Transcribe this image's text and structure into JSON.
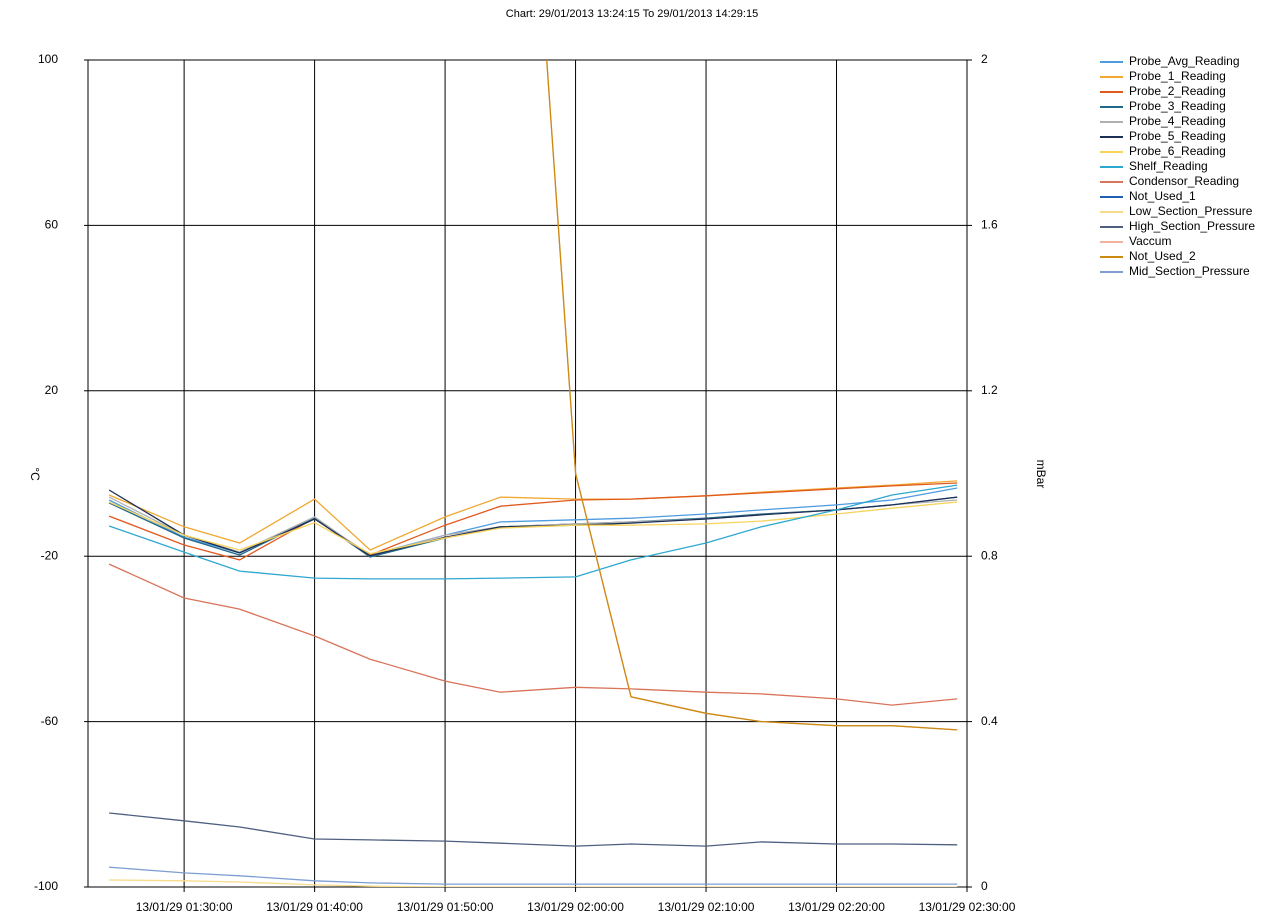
{
  "chart_data": {
    "type": "line",
    "title": "Chart: 29/01/2013 13:24:15 To 29/01/2013 14:29:15",
    "y_label": "°C",
    "y2_label": "mBar",
    "x": [
      "13/01/29 01:24:15",
      "13/01/29 01:30:00",
      "13/01/29 01:34:15",
      "13/01/29 01:40:00",
      "13/01/29 01:44:15",
      "13/01/29 01:50:00",
      "13/01/29 01:54:15",
      "13/01/29 02:00:00",
      "13/01/29 02:04:15",
      "13/01/29 02:10:00",
      "13/01/29 02:14:15",
      "13/01/29 02:20:00",
      "13/01/29 02:24:15",
      "13/01/29 02:29:15"
    ],
    "xlim": [
      "13/01/29 01:22:38",
      "13/01/29 02:30:00"
    ],
    "xticks": [
      "13/01/29 01:30:00",
      "13/01/29 01:40:00",
      "13/01/29 01:50:00",
      "13/01/29 02:00:00",
      "13/01/29 02:10:00",
      "13/01/29 02:20:00",
      "13/01/29 02:30:00"
    ],
    "ylim": [
      -100,
      100
    ],
    "yticks": [
      -100,
      -60,
      -20,
      20,
      60,
      100
    ],
    "y2lim": [
      0,
      2
    ],
    "y2ticks": [
      0,
      0.4,
      0.8,
      1.2,
      1.6,
      2
    ],
    "grid": true,
    "series": [
      {
        "name": "Probe_Avg_Reading",
        "color": "#4f9be0",
        "values": [
          -6.4,
          -15.4,
          -19.2,
          -10.8,
          -19.7,
          -14.9,
          -11.7,
          -11.2,
          -10.8,
          -9.8,
          -8.8,
          -7.6,
          -6.4,
          -3.5
        ]
      },
      {
        "name": "Probe_1_Reading",
        "color": "#f0a830",
        "values": [
          -5.2,
          -12.9,
          -16.8,
          -6.2,
          -18.5,
          -10.5,
          -5.7,
          -6.2,
          -6.2,
          -5.4,
          -4.5,
          -3.5,
          -2.8,
          -1.8
        ]
      },
      {
        "name": "Probe_2_Reading",
        "color": "#e05a1e",
        "values": [
          -10.3,
          -17.3,
          -20.9,
          -10.8,
          -19.7,
          -12.5,
          -7.9,
          -6.4,
          -6.2,
          -5.4,
          -4.7,
          -3.7,
          -3.0,
          -2.3
        ]
      },
      {
        "name": "Probe_3_Reading",
        "color": "#1f6a8a",
        "values": [
          -7.1,
          -15.6,
          -19.7,
          -10.8,
          -20.2,
          -15.6,
          -12.9,
          -12.2,
          -11.7,
          -10.8,
          -9.8,
          -8.8,
          -7.6,
          -5.7
        ]
      },
      {
        "name": "Probe_4_Reading",
        "color": "#b0b0b0",
        "values": [
          -5.7,
          -14.9,
          -19.0,
          -10.5,
          -19.9,
          -14.9,
          -12.9,
          -12.2,
          -11.7,
          -11.0,
          -10.0,
          -8.8,
          -7.6,
          -6.4
        ]
      },
      {
        "name": "Probe_5_Reading",
        "color": "#1e2f55",
        "values": [
          -4.0,
          -14.9,
          -19.2,
          -11.0,
          -19.9,
          -15.4,
          -12.9,
          -12.5,
          -12.0,
          -11.0,
          -10.0,
          -8.8,
          -7.6,
          -5.7
        ]
      },
      {
        "name": "Probe_6_Reading",
        "color": "#f7d35a",
        "values": [
          -6.9,
          -14.9,
          -18.5,
          -11.9,
          -19.4,
          -15.6,
          -13.2,
          -12.5,
          -12.5,
          -12.2,
          -11.5,
          -9.8,
          -8.4,
          -6.9
        ]
      },
      {
        "name": "Shelf_Reading",
        "color": "#2fa8d0",
        "values": [
          -12.7,
          -19.0,
          -23.6,
          -25.3,
          -25.5,
          -25.5,
          -25.3,
          -25.0,
          -20.9,
          -16.8,
          -12.9,
          -8.8,
          -5.2,
          -2.8
        ]
      },
      {
        "name": "Condensor_Reading",
        "color": "#d9735a",
        "values": [
          -21.9,
          -30.1,
          -32.8,
          -39.3,
          -44.9,
          -50.2,
          -52.9,
          -51.7,
          -52.1,
          -52.9,
          -53.3,
          -54.5,
          -56.0,
          -54.5
        ]
      },
      {
        "name": "Not_Used_1",
        "color": "#1f5fb0",
        "values": [
          null,
          null,
          null,
          null,
          null,
          null,
          null,
          null,
          null,
          null,
          null,
          null,
          null,
          null
        ]
      },
      {
        "name": "Low_Section_Pressure",
        "color": "#f7dc8c",
        "axis": "y2",
        "values": [
          0.017,
          0.015,
          0.012,
          0.005,
          0.002,
          0,
          0,
          0,
          0,
          0,
          0,
          0,
          0,
          0
        ]
      },
      {
        "name": "High_Section_Pressure",
        "color": "#4f5f80",
        "axis": "y2",
        "values": [
          0.179,
          0.16,
          0.145,
          0.116,
          0.114,
          0.111,
          0.106,
          0.099,
          0.104,
          0.099,
          0.109,
          0.104,
          0.104,
          0.102
        ]
      },
      {
        "name": "Vaccum",
        "color": "#f3b1a0",
        "axis": "y2",
        "values": [
          null,
          null,
          null,
          null,
          null,
          null,
          3.6,
          1.0,
          0.46,
          0.42,
          0.4,
          0.39,
          0.39,
          0.38
        ]
      },
      {
        "name": "Not_Used_2",
        "color": "#cc8a10",
        "axis": "y2",
        "values": [
          null,
          null,
          null,
          null,
          null,
          null,
          3.6,
          1.0,
          0.46,
          0.42,
          0.4,
          0.39,
          0.39,
          0.38
        ]
      },
      {
        "name": "Mid_Section_Pressure",
        "color": "#7f9fd3",
        "axis": "y2",
        "values": [
          0.048,
          0.034,
          0.027,
          0.015,
          0.01,
          0.007,
          0.007,
          0.007,
          0.007,
          0.007,
          0.007,
          0.007,
          0.007,
          0.007
        ]
      }
    ]
  }
}
